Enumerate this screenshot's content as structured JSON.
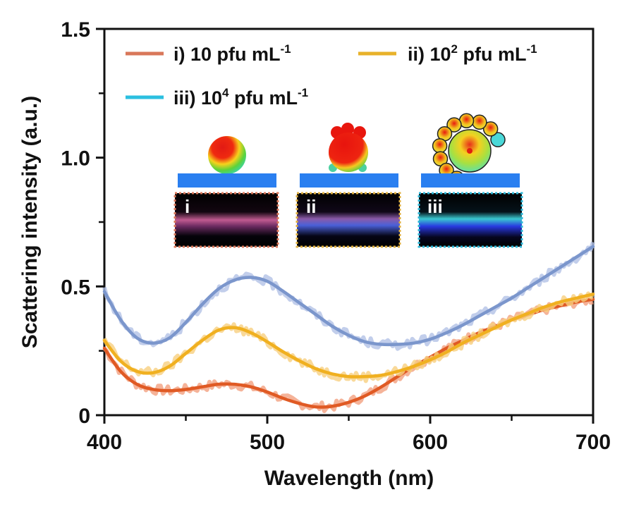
{
  "chart_data": {
    "type": "line",
    "title": "",
    "xlabel": "Wavelength (nm)",
    "ylabel": "Scattering intensity (a.u.)",
    "xlim": [
      400,
      700
    ],
    "ylim": [
      0,
      1.5
    ],
    "xticks": [
      400,
      500,
      600,
      700
    ],
    "xtick_labels": [
      "400",
      "500",
      "600",
      "700"
    ],
    "xminor_ticks": [
      450,
      550,
      650
    ],
    "yticks": [
      0,
      0.5,
      1.0,
      1.5
    ],
    "ytick_labels": [
      "0",
      "0.5",
      "1.0",
      "1.5"
    ],
    "yminor_ticks": [
      0.25,
      0.75,
      1.25
    ],
    "grid": false,
    "legend_position": "top",
    "series": [
      {
        "name": "i) 10 pfu mL-1",
        "label_main": "i) 10 pfu mL",
        "label_exp": "",
        "label_unit_sup": "-1",
        "legend_color": "#d9775a",
        "color": "#e05a24",
        "raw_color": "#f2a080",
        "x": [
          400,
          410,
          420,
          430,
          440,
          450,
          460,
          470,
          480,
          490,
          500,
          510,
          520,
          530,
          540,
          550,
          560,
          570,
          580,
          590,
          600,
          610,
          620,
          630,
          640,
          650,
          660,
          670,
          680,
          690,
          700
        ],
        "values": [
          0.26,
          0.17,
          0.12,
          0.1,
          0.095,
          0.1,
          0.11,
          0.12,
          0.12,
          0.11,
          0.09,
          0.065,
          0.045,
          0.032,
          0.035,
          0.05,
          0.075,
          0.11,
          0.15,
          0.19,
          0.225,
          0.26,
          0.29,
          0.32,
          0.345,
          0.37,
          0.39,
          0.41,
          0.425,
          0.44,
          0.45
        ]
      },
      {
        "name": "ii) 10^2 pfu mL-1",
        "label_main": "ii) 10",
        "label_exp": "2",
        "label_unit": " pfu mL",
        "label_unit_sup": "-1",
        "legend_color": "#e8b22a",
        "color": "#f0b020",
        "raw_color": "#f7cf80",
        "x": [
          400,
          410,
          420,
          430,
          440,
          450,
          460,
          470,
          480,
          490,
          500,
          510,
          520,
          530,
          540,
          550,
          560,
          570,
          580,
          590,
          600,
          610,
          620,
          630,
          640,
          650,
          660,
          670,
          680,
          690,
          700
        ],
        "values": [
          0.29,
          0.21,
          0.17,
          0.165,
          0.19,
          0.24,
          0.29,
          0.33,
          0.34,
          0.32,
          0.285,
          0.245,
          0.21,
          0.18,
          0.16,
          0.15,
          0.15,
          0.155,
          0.17,
          0.19,
          0.215,
          0.245,
          0.28,
          0.31,
          0.34,
          0.37,
          0.395,
          0.42,
          0.44,
          0.455,
          0.47
        ]
      },
      {
        "name": "iii) 10^4 pfu mL-1",
        "label_main": "iii) 10",
        "label_exp": "4",
        "label_unit": " pfu mL",
        "label_unit_sup": "-1",
        "legend_color": "#2bbfe0",
        "color": "#7b96cc",
        "raw_color": "#b3c2e6",
        "x": [
          400,
          410,
          420,
          430,
          440,
          450,
          460,
          470,
          480,
          490,
          500,
          510,
          520,
          530,
          540,
          550,
          560,
          570,
          580,
          590,
          600,
          610,
          620,
          630,
          640,
          650,
          660,
          670,
          680,
          690,
          700
        ],
        "values": [
          0.48,
          0.37,
          0.3,
          0.28,
          0.3,
          0.36,
          0.43,
          0.49,
          0.525,
          0.535,
          0.52,
          0.48,
          0.435,
          0.39,
          0.345,
          0.31,
          0.285,
          0.275,
          0.275,
          0.28,
          0.295,
          0.32,
          0.35,
          0.385,
          0.42,
          0.455,
          0.495,
          0.535,
          0.575,
          0.615,
          0.655
        ]
      }
    ],
    "insets": [
      {
        "label": "i",
        "frame_color": "#d9775a",
        "band_color": "#c0508a",
        "particle": "single sphere"
      },
      {
        "label": "ii",
        "frame_color": "#e0b040",
        "band_color": "#5a6ad0",
        "particle": "sphere with few satellites"
      },
      {
        "label": "iii",
        "frame_color": "#30b8d8",
        "band_color": "#3a5ae8",
        "particle": "sphere with many satellites"
      }
    ]
  }
}
